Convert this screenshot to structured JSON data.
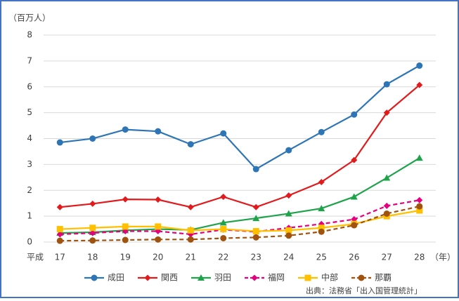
{
  "chart_data": {
    "type": "line",
    "y_unit_label": "（百万人）",
    "x_prefix_label": "平成",
    "x_unit_label": "（年）",
    "source": "出典：法務省「出入国管理統計」",
    "categories": [
      "17",
      "18",
      "19",
      "20",
      "21",
      "22",
      "23",
      "24",
      "25",
      "26",
      "27",
      "28"
    ],
    "series": [
      {
        "name": "成田",
        "color": "#2e75b6",
        "marker": "circle",
        "dashed": false,
        "values": [
          3.85,
          4.0,
          4.35,
          4.28,
          3.78,
          4.2,
          2.82,
          3.55,
          4.25,
          4.93,
          6.1,
          6.82
        ]
      },
      {
        "name": "関西",
        "color": "#e31a1c",
        "marker": "diamond",
        "dashed": false,
        "values": [
          1.35,
          1.48,
          1.65,
          1.64,
          1.35,
          1.75,
          1.35,
          1.8,
          2.32,
          3.17,
          5.0,
          6.07
        ]
      },
      {
        "name": "羽田",
        "color": "#1fa34a",
        "marker": "triangle",
        "dashed": false,
        "values": [
          0.35,
          0.38,
          0.45,
          0.5,
          0.47,
          0.75,
          0.92,
          1.1,
          1.3,
          1.75,
          2.48,
          3.25
        ]
      },
      {
        "name": "福岡",
        "color": "#e6007e",
        "marker": "diamond",
        "dashed": true,
        "values": [
          0.3,
          0.35,
          0.42,
          0.42,
          0.3,
          0.48,
          0.4,
          0.55,
          0.7,
          0.88,
          1.4,
          1.62
        ]
      },
      {
        "name": "中部",
        "color": "#ffc000",
        "marker": "square",
        "dashed": false,
        "values": [
          0.5,
          0.55,
          0.6,
          0.6,
          0.45,
          0.5,
          0.42,
          0.45,
          0.55,
          0.7,
          1.0,
          1.22
        ]
      },
      {
        "name": "那覇",
        "color": "#a0520f",
        "marker": "circle",
        "dashed": true,
        "values": [
          0.05,
          0.06,
          0.08,
          0.1,
          0.1,
          0.15,
          0.18,
          0.25,
          0.4,
          0.65,
          1.1,
          1.38
        ]
      }
    ],
    "ylim": [
      0,
      8
    ],
    "yticks": [
      0,
      1,
      2,
      3,
      4,
      5,
      6,
      7,
      8
    ],
    "grid": true
  }
}
